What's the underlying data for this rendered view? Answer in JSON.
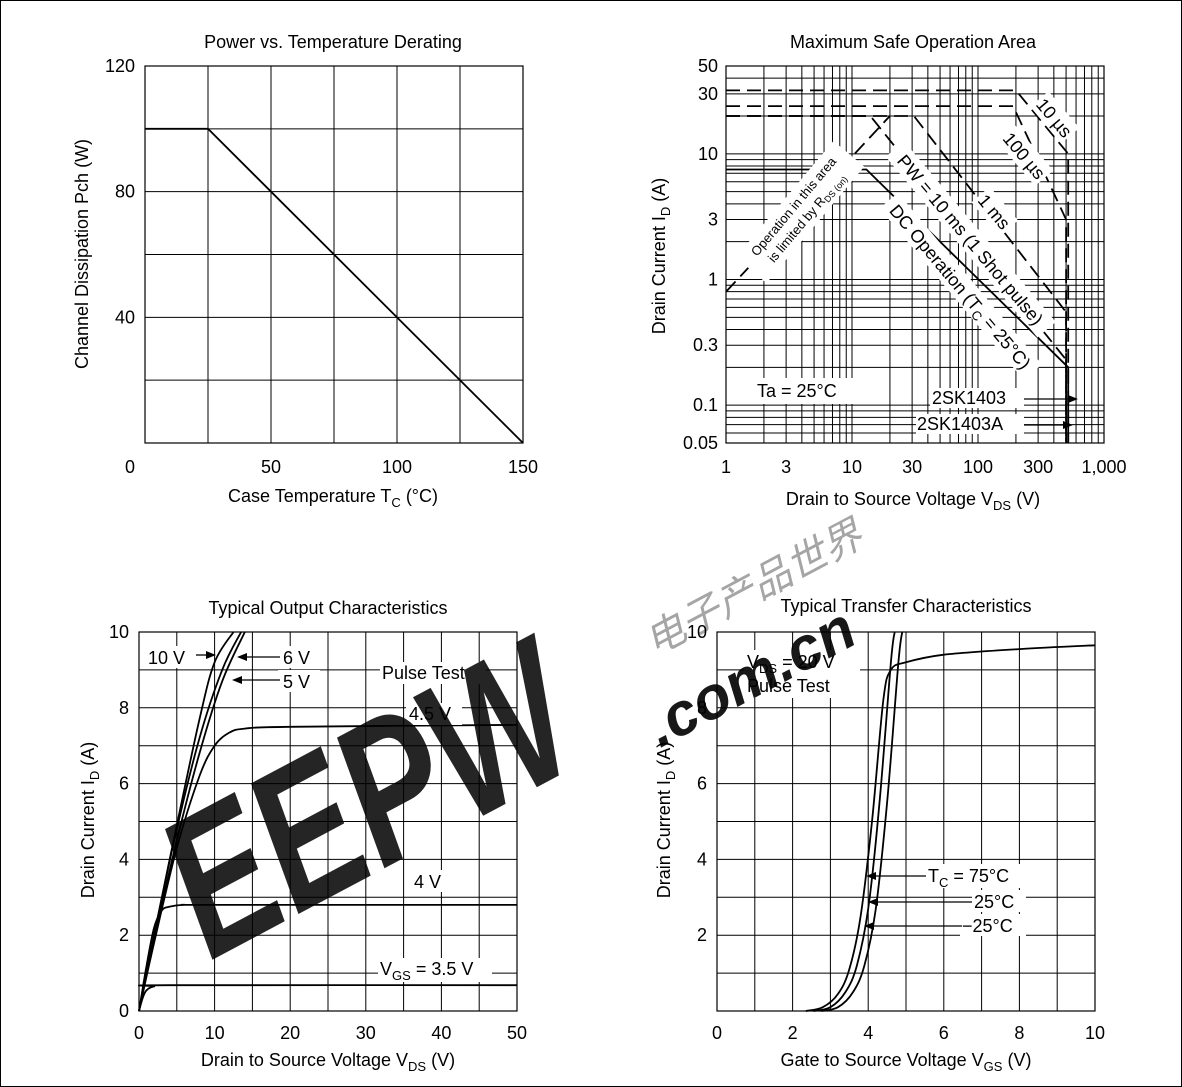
{
  "watermark": {
    "brand": "EEPW",
    "domain": ".com.cn",
    "chinese": "电子产品世界",
    "color": "#e0383d"
  },
  "chart_data": [
    {
      "id": "power-derating",
      "type": "line",
      "title": "Power vs. Temperature Derating",
      "xlabel": "Case Temperature  T",
      "xlabel_sub": "C",
      "xlabel_tail": "  (°C)",
      "ylabel": "Channel Dissipation  Pch  (W)",
      "xlim": [
        0,
        150
      ],
      "ylim": [
        0,
        120
      ],
      "xticks": [
        0,
        50,
        100,
        150
      ],
      "yticks": [
        40,
        80,
        120
      ],
      "xtick_labels": [
        "0",
        "50",
        "100",
        "150"
      ],
      "ytick_labels": [
        "40",
        "80",
        "120"
      ],
      "xgrid": [
        0,
        25,
        50,
        75,
        100,
        125,
        150
      ],
      "ygrid": [
        0,
        20,
        40,
        60,
        80,
        100,
        120
      ],
      "series": [
        {
          "x": [
            0,
            25,
            150
          ],
          "y": [
            100,
            100,
            0
          ]
        }
      ]
    },
    {
      "id": "safe-operation-area",
      "type": "line",
      "scale": "log-log",
      "title": "Maximum Safe Operation Area",
      "xlabel": "Drain to Source Voltage  V",
      "xlabel_sub": "DS",
      "xlabel_tail": "  (V)",
      "ylabel": "Drain Current  I",
      "ylabel_sub": "D",
      "ylabel_tail": "  (A)",
      "xlim": [
        1,
        1000
      ],
      "ylim": [
        0.05,
        50
      ],
      "xtick_labels": [
        "1",
        "3",
        "10",
        "30",
        "100",
        "300",
        "1,000"
      ],
      "xticks": [
        1,
        3,
        10,
        30,
        100,
        300,
        1000
      ],
      "ytick_labels": [
        "0.05",
        "0.1",
        "0.3",
        "1",
        "3",
        "10",
        "30",
        "50"
      ],
      "yticks": [
        0.05,
        0.1,
        0.3,
        1,
        3,
        10,
        30,
        50
      ],
      "annotations": {
        "ta": "Ta = 25°C",
        "rds1": "Operation in this area",
        "rds2": "is limited by R",
        "rds_sub": "DS (on)",
        "t10us": "10 µs",
        "t100us": "100 µs",
        "t1ms": "1 ms",
        "pw": "PW = 10 ms (1 Shot pulse)",
        "dc": "DC Operation (T",
        "dc_sub": "C",
        "dc_tail": " = 25°C)",
        "part1": "2SK1403",
        "part2": "2SK1403A"
      },
      "series": [
        {
          "name": "10 µs",
          "style": "dashed",
          "x": [
            1,
            200,
            520,
            520
          ],
          "y": [
            32,
            32,
            10,
            0.05
          ]
        },
        {
          "name": "100 µs",
          "style": "dashed",
          "x": [
            1,
            190,
            500,
            500
          ],
          "y": [
            24,
            24,
            3,
            0.05
          ]
        },
        {
          "name": "1 ms",
          "style": "dashed",
          "x": [
            1,
            31,
            500,
            500
          ],
          "y": [
            20,
            20,
            0.55,
            0.05
          ]
        },
        {
          "name": "PW = 10 ms (1 Shot pulse)",
          "style": "dashed",
          "x": [
            1,
            14,
            500,
            500
          ],
          "y": [
            20,
            20,
            0.23,
            0.05
          ]
        },
        {
          "name": "DC Operation",
          "style": "solid",
          "x": [
            1,
            13,
            520,
            520
          ],
          "y": [
            7.5,
            7.5,
            0.2,
            0.05
          ]
        },
        {
          "name": "RDS(on) limit",
          "style": "dashed",
          "x": [
            1,
            20
          ],
          "y": [
            0.8,
            20
          ]
        }
      ]
    },
    {
      "id": "output-characteristics",
      "type": "line",
      "title": "Typical Output Characteristics",
      "xlabel": "Drain to Source Voltage  V",
      "xlabel_sub": "DS",
      "xlabel_tail": "  (V)",
      "ylabel": "Drain Current  I",
      "ylabel_sub": "D",
      "ylabel_tail": "  (A)",
      "xlim": [
        0,
        50
      ],
      "ylim": [
        0,
        10
      ],
      "xticks": [
        0,
        10,
        20,
        30,
        40,
        50
      ],
      "yticks": [
        0,
        2,
        4,
        6,
        8,
        10
      ],
      "xtick_labels": [
        "0",
        "10",
        "20",
        "30",
        "40",
        "50"
      ],
      "ytick_labels": [
        "0",
        "2",
        "4",
        "6",
        "8",
        "10"
      ],
      "annotations": {
        "pulse": "Pulse Test",
        "v10": "10 V",
        "v6": "6 V",
        "v5": "5 V",
        "v45": "4.5 V",
        "v4": "4 V",
        "vgs": "V",
        "vgs_sub": "GS",
        "vgs_tail": " = 3.5 V"
      },
      "series": [
        {
          "name": "10 V",
          "x": [
            0,
            2,
            5,
            8,
            10,
            12.5
          ],
          "y": [
            0,
            2,
            4.9,
            7.7,
            9.2,
            10
          ]
        },
        {
          "name": "6 V",
          "x": [
            0,
            2,
            5,
            8,
            11,
            13.5
          ],
          "y": [
            0,
            2,
            4.8,
            7.2,
            9,
            10
          ]
        },
        {
          "name": "5 V",
          "x": [
            0,
            2,
            5,
            8,
            11,
            14
          ],
          "y": [
            0,
            1.9,
            4.5,
            6.8,
            8.7,
            10
          ]
        },
        {
          "name": "4.5 V",
          "x": [
            0,
            2,
            5,
            8,
            10,
            12,
            14,
            20,
            50
          ],
          "y": [
            0,
            1.8,
            4.3,
            6.2,
            7,
            7.35,
            7.45,
            7.5,
            7.55
          ]
        },
        {
          "name": "4 V",
          "x": [
            0,
            1,
            2,
            3,
            4,
            6,
            10,
            50
          ],
          "y": [
            0,
            1.2,
            2.2,
            2.65,
            2.75,
            2.8,
            2.8,
            2.8
          ]
        },
        {
          "name": "VGS = 3.5 V",
          "x": [
            0,
            0.5,
            1,
            2,
            4,
            50
          ],
          "y": [
            0,
            0.35,
            0.55,
            0.65,
            0.68,
            0.68
          ]
        }
      ]
    },
    {
      "id": "transfer-characteristics",
      "type": "line",
      "title": "Typical Transfer Characteristics",
      "xlabel": "Gate to Source Voltage  V",
      "xlabel_sub": "GS",
      "xlabel_tail": "  (V)",
      "ylabel": "Drain Current  I",
      "ylabel_sub": "D",
      "ylabel_tail": "  (A)",
      "xlim": [
        0,
        10
      ],
      "ylim": [
        0,
        10
      ],
      "xticks": [
        0,
        2,
        4,
        6,
        8,
        10
      ],
      "yticks": [
        2,
        4,
        6,
        8,
        10
      ],
      "xtick_labels": [
        "0",
        "2",
        "4",
        "6",
        "8",
        "10"
      ],
      "ytick_labels": [
        "2",
        "4",
        "6",
        "8",
        "10"
      ],
      "annotations": {
        "vds": "V",
        "vds_sub": "DS",
        "vds_tail": " = 20 V",
        "pulse": "Pulse Test",
        "tc75a": "T",
        "tc75_sub": "C",
        "tc75_tail": " = 75°C",
        "tc25": "25°C",
        "tcm25": "−25°C"
      },
      "series": [
        {
          "name": "TC = 75°C",
          "x": [
            2.35,
            2.8,
            3.2,
            3.5,
            3.8,
            4.1,
            4.4,
            4.6,
            5,
            6,
            8,
            10
          ],
          "y": [
            0,
            0.1,
            0.45,
            1.1,
            2.5,
            5,
            8.2,
            9,
            9.2,
            9.4,
            9.55,
            9.65
          ]
        },
        {
          "name": "25°C",
          "x": [
            2.55,
            3.0,
            3.4,
            3.7,
            4.0,
            4.3,
            4.6,
            4.7
          ],
          "y": [
            0,
            0.1,
            0.5,
            1.2,
            2.7,
            5.5,
            9.2,
            10
          ]
        },
        {
          "name": "−25°C",
          "x": [
            2.75,
            3.2,
            3.6,
            3.9,
            4.2,
            4.5,
            4.8,
            4.9
          ],
          "y": [
            0,
            0.1,
            0.5,
            1.2,
            2.7,
            5.5,
            9.2,
            10
          ]
        }
      ]
    }
  ]
}
